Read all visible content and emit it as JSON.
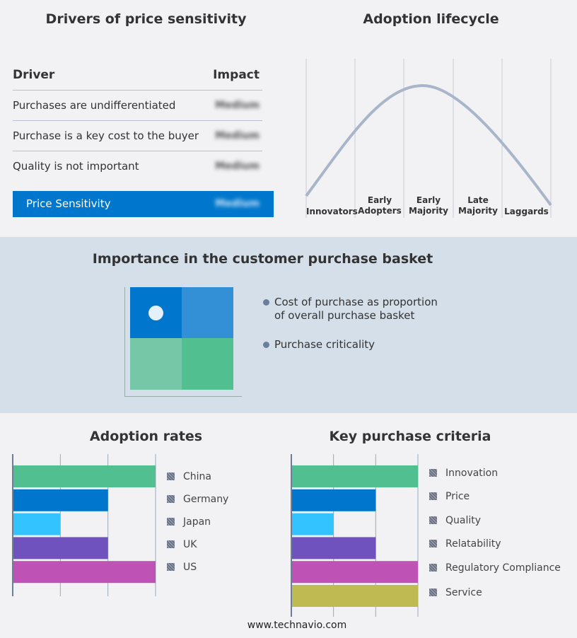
{
  "drivers": {
    "title": "Drivers of price sensitivity",
    "col_driver": "Driver",
    "col_impact": "Impact",
    "rows": [
      {
        "driver": "Purchases are undifferentiated",
        "impact": "Medium"
      },
      {
        "driver": "Purchase is a key cost to the buyer",
        "impact": "Medium"
      },
      {
        "driver": "Quality is not important",
        "impact": "Medium"
      }
    ],
    "summary": {
      "label": "Price Sensitivity",
      "impact": "Medium"
    }
  },
  "lifecycle": {
    "title": "Adoption lifecycle",
    "stages": [
      "Innovators",
      "Early Adopters",
      "Early Majority",
      "Late Majority",
      "Laggards"
    ]
  },
  "basket": {
    "title": "Importance in the customer purchase basket",
    "legend": [
      "Cost of purchase as proportion of overall purchase basket",
      "Purchase criticality"
    ],
    "colors": [
      "#0077cc",
      "#3390d6",
      "#76c7a8",
      "#52bf90"
    ]
  },
  "chart_data": [
    {
      "type": "bar",
      "title": "Adoption rates",
      "categories": [
        "China",
        "Germany",
        "Japan",
        "UK",
        "US"
      ],
      "values": [
        3,
        2,
        1,
        2,
        3
      ],
      "xlim": [
        0,
        3
      ],
      "colors": [
        "#52bf90",
        "#0077cc",
        "#33c4ff",
        "#6f52bd",
        "#bf52b5"
      ],
      "grid": true,
      "legend": "right"
    },
    {
      "type": "bar",
      "title": "Key purchase criteria",
      "categories": [
        "Innovation",
        "Price",
        "Quality",
        "Relatability",
        "Regulatory Compliance",
        "Service"
      ],
      "values": [
        3,
        2,
        1,
        2,
        3,
        3
      ],
      "xlim": [
        0,
        3
      ],
      "colors": [
        "#52bf90",
        "#0077cc",
        "#33c4ff",
        "#6f52bd",
        "#bf52b5",
        "#bfbb52"
      ],
      "grid": true,
      "legend": "right"
    }
  ],
  "footer": "www.technavio.com"
}
